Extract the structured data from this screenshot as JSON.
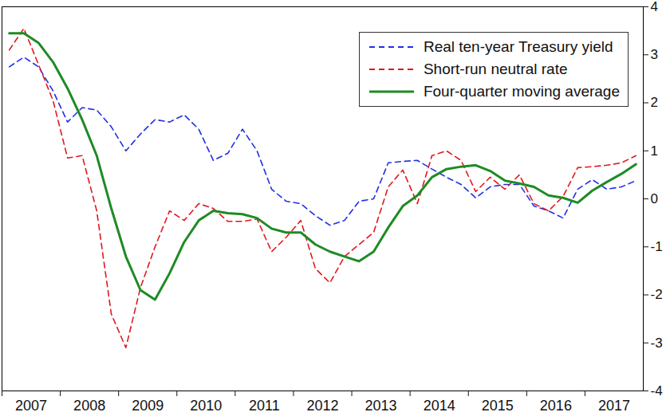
{
  "chart_data": {
    "type": "line",
    "x": [
      2007.125,
      2007.375,
      2007.625,
      2007.875,
      2008.125,
      2008.375,
      2008.625,
      2008.875,
      2009.125,
      2009.375,
      2009.625,
      2009.875,
      2010.125,
      2010.375,
      2010.625,
      2010.875,
      2011.125,
      2011.375,
      2011.625,
      2011.875,
      2012.125,
      2012.375,
      2012.625,
      2012.875,
      2013.125,
      2013.375,
      2013.625,
      2013.875,
      2014.125,
      2014.375,
      2014.625,
      2014.875,
      2015.125,
      2015.375,
      2015.625,
      2015.875,
      2016.125,
      2016.375,
      2016.625,
      2016.875,
      2017.125,
      2017.375,
      2017.625,
      2017.875
    ],
    "series": [
      {
        "name": "Real ten-year Treasury yield",
        "color": "#1f2fe6",
        "line_style": "dashed",
        "values": [
          2.75,
          2.95,
          2.75,
          2.25,
          1.6,
          1.9,
          1.85,
          1.5,
          1.0,
          1.35,
          1.65,
          1.6,
          1.75,
          1.45,
          0.8,
          0.95,
          1.45,
          1.0,
          0.2,
          -0.05,
          -0.1,
          -0.35,
          -0.55,
          -0.45,
          -0.05,
          0.0,
          0.75,
          0.78,
          0.8,
          0.62,
          0.45,
          0.3,
          0.02,
          0.25,
          0.3,
          0.3,
          -0.15,
          -0.25,
          -0.4,
          0.2,
          0.4,
          0.2,
          0.25,
          0.38
        ]
      },
      {
        "name": "Short-run neutral rate",
        "color": "#e0181e",
        "line_style": "dashed",
        "values": [
          3.1,
          3.55,
          2.8,
          2.05,
          0.85,
          0.9,
          -0.25,
          -2.4,
          -3.1,
          -1.85,
          -1.0,
          -0.25,
          -0.45,
          -0.1,
          -0.2,
          -0.47,
          -0.47,
          -0.42,
          -1.1,
          -0.8,
          -0.45,
          -1.45,
          -1.75,
          -1.2,
          -0.95,
          -0.7,
          0.25,
          0.6,
          -0.1,
          0.9,
          1.0,
          0.8,
          0.15,
          0.45,
          0.2,
          0.5,
          -0.1,
          -0.25,
          0.05,
          0.65,
          0.67,
          0.7,
          0.75,
          0.9
        ]
      },
      {
        "name": "Four-quarter moving average",
        "color": "#1e8b24",
        "line_style": "solid",
        "values": [
          3.45,
          3.45,
          3.25,
          2.85,
          2.3,
          1.65,
          0.9,
          -0.2,
          -1.2,
          -1.9,
          -2.1,
          -1.55,
          -0.9,
          -0.45,
          -0.25,
          -0.3,
          -0.32,
          -0.4,
          -0.62,
          -0.7,
          -0.7,
          -0.95,
          -1.1,
          -1.2,
          -1.3,
          -1.1,
          -0.6,
          -0.15,
          0.07,
          0.45,
          0.62,
          0.67,
          0.7,
          0.58,
          0.38,
          0.32,
          0.25,
          0.07,
          0.02,
          -0.08,
          0.17,
          0.35,
          0.52,
          0.72
        ]
      }
    ],
    "xlim": [
      2007,
      2018
    ],
    "xticks": [
      2007,
      2008,
      2009,
      2010,
      2011,
      2012,
      2013,
      2014,
      2015,
      2016,
      2017
    ],
    "ylim": [
      -4,
      4
    ],
    "yticks": [
      -4,
      -3,
      -2,
      -1,
      0,
      1,
      2,
      3,
      4
    ],
    "grid": false,
    "legend": "top-right"
  }
}
